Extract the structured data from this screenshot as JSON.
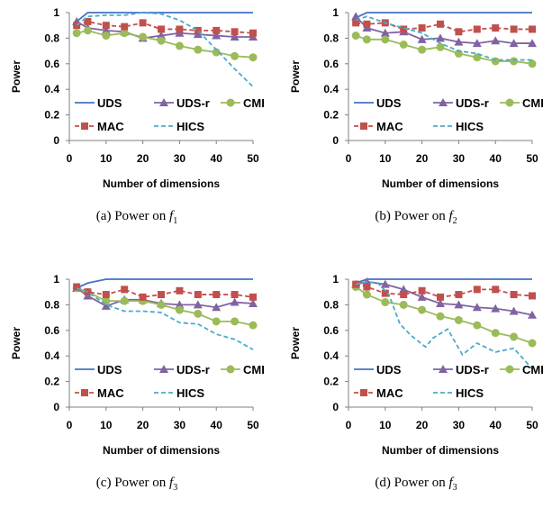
{
  "chart_data": [
    {
      "type": "line",
      "caption": {
        "prefix": "(a)  Power on ",
        "var": "f",
        "sub": "1"
      },
      "xlabel": "Number of dimensions",
      "ylabel": "Power",
      "xlim": [
        0,
        50
      ],
      "ylim": [
        0,
        1
      ],
      "xticks": [
        0,
        10,
        20,
        30,
        40,
        50
      ],
      "yticks": [
        0,
        0.2,
        0.4,
        0.6,
        0.8,
        1
      ],
      "ytick_labels": [
        "0",
        "0.2",
        "0.4",
        "0.6",
        "0.8",
        "1"
      ],
      "legend": [
        "UDS",
        "UDS-r",
        "CMI",
        "MAC",
        "HICS"
      ],
      "series": [
        {
          "name": "UDS",
          "color": "#4472C4",
          "style": "solid",
          "marker": "none",
          "x": [
            2,
            5,
            10,
            15,
            20,
            25,
            30,
            35,
            40,
            45,
            50
          ],
          "y": [
            0.93,
            1.0,
            1.0,
            1.0,
            1.0,
            1.0,
            1.0,
            1.0,
            1.0,
            1.0,
            1.0
          ]
        },
        {
          "name": "UDS-r",
          "color": "#8064A2",
          "style": "solid",
          "marker": "triangle",
          "x": [
            2,
            5,
            10,
            15,
            20,
            25,
            30,
            35,
            40,
            45,
            50
          ],
          "y": [
            0.93,
            0.88,
            0.86,
            0.85,
            0.8,
            0.82,
            0.84,
            0.83,
            0.82,
            0.81,
            0.81
          ]
        },
        {
          "name": "CMI",
          "color": "#9BBB59",
          "style": "solid",
          "marker": "circle",
          "x": [
            2,
            5,
            10,
            15,
            20,
            25,
            30,
            35,
            40,
            45,
            50
          ],
          "y": [
            0.84,
            0.86,
            0.82,
            0.84,
            0.81,
            0.78,
            0.74,
            0.71,
            0.69,
            0.66,
            0.65
          ]
        },
        {
          "name": "MAC",
          "color": "#C0504D",
          "style": "dash",
          "marker": "square",
          "x": [
            2,
            5,
            10,
            15,
            20,
            25,
            30,
            35,
            40,
            45,
            50
          ],
          "y": [
            0.9,
            0.93,
            0.9,
            0.89,
            0.92,
            0.87,
            0.87,
            0.86,
            0.86,
            0.85,
            0.84
          ]
        },
        {
          "name": "HICS",
          "color": "#4BACC6",
          "style": "dash",
          "marker": "none",
          "x": [
            2,
            5,
            10,
            15,
            20,
            25,
            30,
            35,
            40,
            45,
            50
          ],
          "y": [
            0.9,
            0.97,
            0.98,
            0.98,
            1.0,
            0.99,
            0.94,
            0.86,
            0.71,
            0.56,
            0.42
          ]
        }
      ]
    },
    {
      "type": "line",
      "caption": {
        "prefix": "(b)  Power on ",
        "var": "f",
        "sub": "2"
      },
      "xlabel": "Number of dimensions",
      "ylabel": "Power",
      "xlim": [
        0,
        50
      ],
      "ylim": [
        0,
        1
      ],
      "xticks": [
        0,
        10,
        20,
        30,
        40,
        50
      ],
      "yticks": [
        0,
        0.2,
        0.4,
        0.6,
        0.8,
        1
      ],
      "ytick_labels": [
        "0",
        "0.2",
        "0.4",
        "0.6",
        "0.8",
        "1"
      ],
      "legend": [
        "UDS",
        "UDS-r",
        "CMI",
        "MAC",
        "HICS"
      ],
      "series": [
        {
          "name": "UDS",
          "color": "#4472C4",
          "style": "solid",
          "marker": "none",
          "x": [
            2,
            5,
            10,
            15,
            20,
            25,
            30,
            35,
            40,
            45,
            50
          ],
          "y": [
            0.96,
            1.0,
            1.0,
            1.0,
            1.0,
            1.0,
            1.0,
            1.0,
            1.0,
            1.0,
            1.0
          ]
        },
        {
          "name": "UDS-r",
          "color": "#8064A2",
          "style": "solid",
          "marker": "triangle",
          "x": [
            2,
            5,
            10,
            15,
            20,
            25,
            30,
            35,
            40,
            45,
            50
          ],
          "y": [
            0.97,
            0.88,
            0.84,
            0.85,
            0.79,
            0.8,
            0.77,
            0.76,
            0.78,
            0.76,
            0.76
          ]
        },
        {
          "name": "CMI",
          "color": "#9BBB59",
          "style": "solid",
          "marker": "circle",
          "x": [
            2,
            5,
            10,
            15,
            20,
            25,
            30,
            35,
            40,
            45,
            50
          ],
          "y": [
            0.82,
            0.79,
            0.79,
            0.75,
            0.71,
            0.73,
            0.68,
            0.65,
            0.62,
            0.62,
            0.6
          ]
        },
        {
          "name": "MAC",
          "color": "#C0504D",
          "style": "dash",
          "marker": "square",
          "x": [
            2,
            5,
            10,
            15,
            20,
            25,
            30,
            35,
            40,
            45,
            50
          ],
          "y": [
            0.92,
            0.91,
            0.92,
            0.87,
            0.88,
            0.91,
            0.85,
            0.87,
            0.88,
            0.87,
            0.87
          ]
        },
        {
          "name": "HICS",
          "color": "#4BACC6",
          "style": "dash",
          "marker": "none",
          "x": [
            2,
            5,
            10,
            15,
            20,
            25,
            30,
            35,
            40,
            45,
            50
          ],
          "y": [
            0.94,
            0.97,
            0.92,
            0.88,
            0.84,
            0.76,
            0.7,
            0.68,
            0.63,
            0.63,
            0.63
          ]
        }
      ]
    },
    {
      "type": "line",
      "caption": {
        "prefix": "(c)  Power on ",
        "var": "f",
        "sub": "3"
      },
      "xlabel": "Number of dimensions",
      "ylabel": "Power",
      "xlim": [
        0,
        50
      ],
      "ylim": [
        0,
        1
      ],
      "xticks": [
        0,
        10,
        20,
        30,
        40,
        50
      ],
      "yticks": [
        0,
        0.2,
        0.4,
        0.6,
        0.8,
        1
      ],
      "ytick_labels": [
        "0",
        "0.2",
        "0.4",
        "0.6",
        "0.8",
        "1"
      ],
      "legend": [
        "UDS",
        "UDS-r",
        "CMI",
        "MAC",
        "HICS"
      ],
      "series": [
        {
          "name": "UDS",
          "color": "#4472C4",
          "style": "solid",
          "marker": "none",
          "x": [
            2,
            5,
            10,
            15,
            20,
            25,
            30,
            35,
            40,
            45,
            50
          ],
          "y": [
            0.93,
            0.97,
            1.0,
            1.0,
            1.0,
            1.0,
            1.0,
            1.0,
            1.0,
            1.0,
            1.0
          ]
        },
        {
          "name": "UDS-r",
          "color": "#8064A2",
          "style": "solid",
          "marker": "triangle",
          "x": [
            2,
            5,
            10,
            15,
            20,
            25,
            30,
            35,
            40,
            45,
            50
          ],
          "y": [
            0.93,
            0.87,
            0.79,
            0.84,
            0.84,
            0.81,
            0.8,
            0.8,
            0.78,
            0.82,
            0.81
          ]
        },
        {
          "name": "CMI",
          "color": "#9BBB59",
          "style": "solid",
          "marker": "circle",
          "x": [
            2,
            5,
            10,
            15,
            20,
            25,
            30,
            35,
            40,
            45,
            50
          ],
          "y": [
            0.93,
            0.9,
            0.83,
            0.83,
            0.83,
            0.8,
            0.76,
            0.73,
            0.67,
            0.67,
            0.64
          ]
        },
        {
          "name": "MAC",
          "color": "#C0504D",
          "style": "dash",
          "marker": "square",
          "x": [
            2,
            5,
            10,
            15,
            20,
            25,
            30,
            35,
            40,
            45,
            50
          ],
          "y": [
            0.94,
            0.9,
            0.88,
            0.92,
            0.86,
            0.88,
            0.91,
            0.88,
            0.88,
            0.88,
            0.86
          ]
        },
        {
          "name": "HICS",
          "color": "#4BACC6",
          "style": "dash",
          "marker": "none",
          "x": [
            2,
            5,
            10,
            15,
            20,
            25,
            30,
            35,
            40,
            45,
            50
          ],
          "y": [
            0.93,
            0.9,
            0.8,
            0.75,
            0.75,
            0.74,
            0.66,
            0.65,
            0.57,
            0.53,
            0.45
          ]
        }
      ]
    },
    {
      "type": "line",
      "caption": {
        "prefix": "(d)  Power on ",
        "var": "f",
        "sub": "3"
      },
      "xlabel": "Number of dimensions",
      "ylabel": "Power",
      "xlim": [
        0,
        50
      ],
      "ylim": [
        0,
        1
      ],
      "xticks": [
        0,
        10,
        20,
        30,
        40,
        50
      ],
      "yticks": [
        0,
        0.2,
        0.4,
        0.6,
        0.8,
        1
      ],
      "ytick_labels": [
        "0",
        "0.2",
        "0.4",
        "0.6",
        "0.8",
        "1"
      ],
      "legend": [
        "UDS",
        "UDS-r",
        "CMI",
        "MAC",
        "HICS"
      ],
      "series": [
        {
          "name": "UDS",
          "color": "#4472C4",
          "style": "solid",
          "marker": "none",
          "x": [
            2,
            5,
            10,
            15,
            20,
            25,
            30,
            35,
            40,
            45,
            50
          ],
          "y": [
            0.97,
            1.0,
            1.0,
            1.0,
            1.0,
            1.0,
            1.0,
            1.0,
            1.0,
            1.0,
            1.0
          ]
        },
        {
          "name": "UDS-r",
          "color": "#8064A2",
          "style": "solid",
          "marker": "triangle",
          "x": [
            2,
            5,
            10,
            15,
            20,
            25,
            30,
            35,
            40,
            45,
            50
          ],
          "y": [
            0.96,
            0.98,
            0.96,
            0.92,
            0.86,
            0.81,
            0.8,
            0.78,
            0.77,
            0.75,
            0.72
          ]
        },
        {
          "name": "CMI",
          "color": "#9BBB59",
          "style": "solid",
          "marker": "circle",
          "x": [
            2,
            5,
            10,
            15,
            20,
            25,
            30,
            35,
            40,
            45,
            50
          ],
          "y": [
            0.94,
            0.88,
            0.82,
            0.8,
            0.76,
            0.71,
            0.68,
            0.64,
            0.58,
            0.55,
            0.5
          ]
        },
        {
          "name": "MAC",
          "color": "#C0504D",
          "style": "dash",
          "marker": "square",
          "x": [
            2,
            5,
            10,
            15,
            20,
            25,
            30,
            35,
            40,
            45,
            50
          ],
          "y": [
            0.96,
            0.94,
            0.89,
            0.88,
            0.91,
            0.86,
            0.88,
            0.92,
            0.92,
            0.88,
            0.87
          ]
        },
        {
          "name": "HICS",
          "color": "#4BACC6",
          "style": "dash",
          "marker": "none",
          "x": [
            2,
            5,
            8,
            11,
            14,
            17,
            21,
            23,
            27,
            31,
            35,
            40,
            45,
            50
          ],
          "y": [
            0.96,
            0.98,
            0.97,
            0.88,
            0.65,
            0.56,
            0.47,
            0.54,
            0.61,
            0.41,
            0.5,
            0.43,
            0.46,
            0.3
          ]
        }
      ]
    }
  ]
}
